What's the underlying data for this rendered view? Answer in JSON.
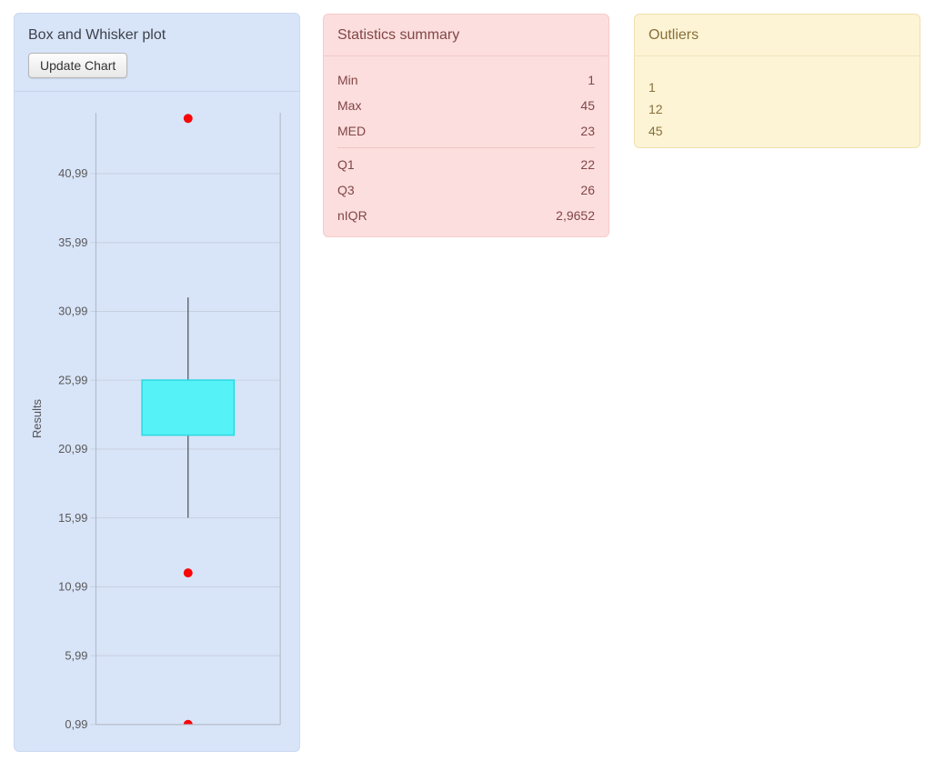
{
  "chart_panel": {
    "title": "Box and Whisker plot",
    "update_button_label": "Update Chart"
  },
  "chart_data": {
    "type": "boxplot",
    "title": "Box and Whisker plot",
    "xlabel": "",
    "ylabel": "Results",
    "ylim": [
      0.99,
      45.4
    ],
    "grid": true,
    "y_ticks": [
      {
        "value": 0.99,
        "label": "0,99"
      },
      {
        "value": 5.99,
        "label": "5,99"
      },
      {
        "value": 10.99,
        "label": "10,99"
      },
      {
        "value": 15.99,
        "label": "15,99"
      },
      {
        "value": 20.99,
        "label": "20,99"
      },
      {
        "value": 25.99,
        "label": "25,99"
      },
      {
        "value": 30.99,
        "label": "30,99"
      },
      {
        "value": 35.99,
        "label": "35,99"
      },
      {
        "value": 40.99,
        "label": "40,99"
      }
    ],
    "series": [
      {
        "name": "Results",
        "q1": 22,
        "median": 23,
        "q3": 26,
        "whisker_low": 16,
        "whisker_high": 32,
        "outliers": [
          45,
          12,
          1
        ]
      }
    ],
    "colors": {
      "box_fill": "#55f2f8",
      "box_stroke": "#2bd8e0",
      "whisker": "#4a4f55",
      "outlier_dot": "#f80707",
      "gridline": "#c7d0de",
      "axis_line": "#aeb6c2",
      "tick_label": "#595959",
      "axis_title": "#555555"
    }
  },
  "stats_panel": {
    "title": "Statistics summary",
    "rows_top": [
      {
        "label": "Min",
        "value": "1"
      },
      {
        "label": "Max",
        "value": "45"
      },
      {
        "label": "MED",
        "value": "23"
      }
    ],
    "rows_bottom": [
      {
        "label": "Q1",
        "value": "22"
      },
      {
        "label": "Q3",
        "value": "26"
      },
      {
        "label": "nIQR",
        "value": "2,9652"
      }
    ]
  },
  "outliers_panel": {
    "title": "Outliers",
    "items": [
      "1",
      "12",
      "45"
    ]
  }
}
